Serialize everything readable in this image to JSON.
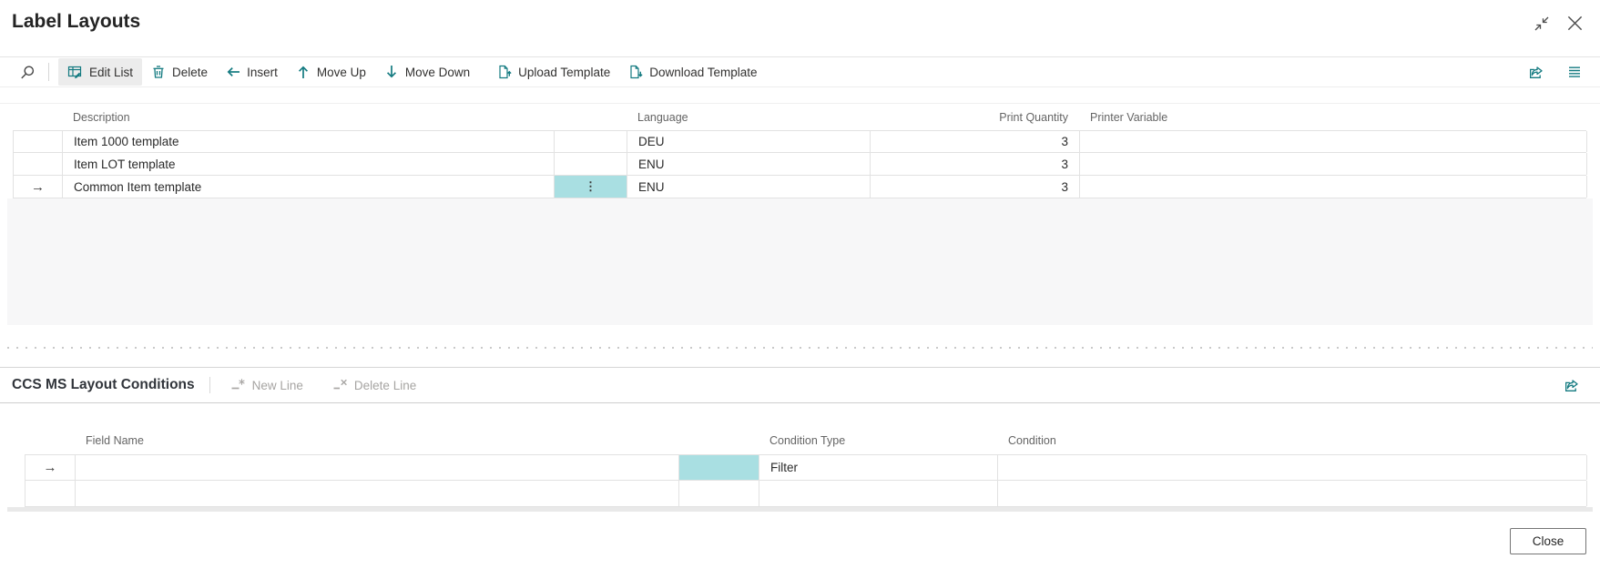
{
  "page": {
    "title": "Label Layouts",
    "window": {
      "minimize_icon": "collapse-arrows-icon",
      "close_icon": "close-x-icon"
    }
  },
  "toolbar": {
    "search_icon": "search-icon",
    "items": [
      {
        "label": "Edit List",
        "icon": "edit-list-icon",
        "active": true
      },
      {
        "label": "Delete",
        "icon": "trash-icon",
        "active": false
      },
      {
        "label": "Insert",
        "icon": "arrow-left-icon",
        "active": false
      },
      {
        "label": "Move Up",
        "icon": "arrow-up-icon",
        "active": false
      },
      {
        "label": "Move Down",
        "icon": "arrow-down-icon",
        "active": false
      },
      {
        "label": "Upload Template",
        "icon": "file-upload-icon",
        "active": false
      },
      {
        "label": "Download Template",
        "icon": "file-download-icon",
        "active": false
      }
    ],
    "right_icons": [
      "share-icon",
      "list-options-icon"
    ]
  },
  "layouts_table": {
    "columns": [
      "Description",
      "Language",
      "Print Quantity",
      "Printer Variable"
    ],
    "rows": [
      {
        "description": "Item 1000 template",
        "language": "DEU",
        "print_quantity": "3",
        "printer_variable": "",
        "selected": false
      },
      {
        "description": "Item LOT template",
        "language": "ENU",
        "print_quantity": "3",
        "printer_variable": "",
        "selected": false
      },
      {
        "description": "Common Item template",
        "language": "ENU",
        "print_quantity": "3",
        "printer_variable": "",
        "selected": true
      }
    ]
  },
  "conditions_section": {
    "title": "CCS MS Layout Conditions",
    "actions": [
      {
        "label": "New Line",
        "icon": "new-line-icon",
        "disabled": true
      },
      {
        "label": "Delete Line",
        "icon": "delete-line-icon",
        "disabled": true
      }
    ],
    "share_icon": "share-icon",
    "columns": [
      "Field Name",
      "Condition Type",
      "Condition"
    ],
    "rows": [
      {
        "field_name": "",
        "condition_type": "Filter",
        "condition": "",
        "selected": true
      },
      {
        "field_name": "",
        "condition_type": "",
        "condition": "",
        "selected": false
      }
    ]
  },
  "footer": {
    "close_label": "Close"
  },
  "colors": {
    "accent_teal": "#137a80",
    "selection_teal": "#a9dfe2",
    "active_button_bg": "#ececec"
  }
}
